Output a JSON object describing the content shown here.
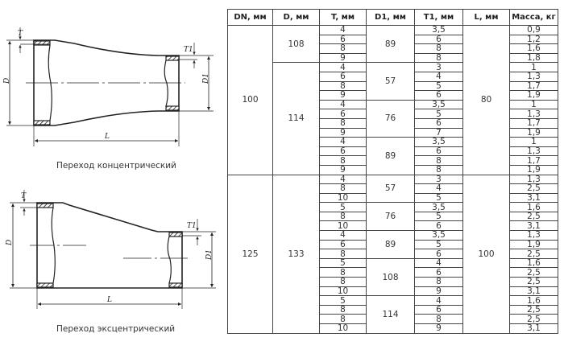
{
  "figures": {
    "concentric": {
      "caption": "Переход концентрический",
      "labels": {
        "T": "T",
        "T1": "T1",
        "D": "D",
        "D1": "D1",
        "L": "L"
      }
    },
    "eccentric": {
      "caption": "Переход эксцентрический",
      "labels": {
        "T": "T",
        "T1": "T1",
        "D": "D",
        "D1": "D1",
        "L": "L"
      }
    }
  },
  "table": {
    "headers": [
      "DN, мм",
      "D, мм",
      "T, мм",
      "D1, мм",
      "T1, мм",
      "L, мм",
      "Масса, кг"
    ],
    "groups": [
      {
        "dn": "100",
        "l": "80",
        "d_groups": [
          {
            "d": "108",
            "d1_groups": [
              {
                "d1": "89",
                "rows": [
                  [
                    "4",
                    "3,5",
                    "0,9"
                  ],
                  [
                    "6",
                    "6",
                    "1,2"
                  ],
                  [
                    "8",
                    "8",
                    "1,6"
                  ],
                  [
                    "9",
                    "8",
                    "1,8"
                  ]
                ]
              }
            ]
          },
          {
            "d": "114",
            "d1_groups": [
              {
                "d1": "57",
                "rows": [
                  [
                    "4",
                    "3",
                    "1"
                  ],
                  [
                    "6",
                    "4",
                    "1,3"
                  ],
                  [
                    "8",
                    "5",
                    "1,7"
                  ],
                  [
                    "9",
                    "6",
                    "1,9"
                  ]
                ]
              },
              {
                "d1": "76",
                "rows": [
                  [
                    "4",
                    "3,5",
                    "1"
                  ],
                  [
                    "6",
                    "5",
                    "1,3"
                  ],
                  [
                    "8",
                    "6",
                    "1,7"
                  ],
                  [
                    "9",
                    "7",
                    "1,9"
                  ]
                ]
              },
              {
                "d1": "89",
                "rows": [
                  [
                    "4",
                    "3,5",
                    "1"
                  ],
                  [
                    "6",
                    "6",
                    "1,3"
                  ],
                  [
                    "8",
                    "8",
                    "1,7"
                  ],
                  [
                    "9",
                    "8",
                    "1,9"
                  ]
                ]
              }
            ]
          }
        ]
      },
      {
        "dn": "125",
        "l": "100",
        "d_groups": [
          {
            "d": "133",
            "d1_groups": [
              {
                "d1": "57",
                "rows": [
                  [
                    "4",
                    "3",
                    "1,3"
                  ],
                  [
                    "8",
                    "4",
                    "2,5"
                  ],
                  [
                    "10",
                    "5",
                    "3,1"
                  ]
                ]
              },
              {
                "d1": "76",
                "rows": [
                  [
                    "5",
                    "3,5",
                    "1,6"
                  ],
                  [
                    "8",
                    "5",
                    "2,5"
                  ],
                  [
                    "10",
                    "6",
                    "3,1"
                  ]
                ]
              },
              {
                "d1": "89",
                "rows": [
                  [
                    "4",
                    "3,5",
                    "1,3"
                  ],
                  [
                    "6",
                    "5",
                    "1,9"
                  ],
                  [
                    "8",
                    "6",
                    "2,5"
                  ]
                ]
              },
              {
                "d1": "108",
                "rows": [
                  [
                    "5",
                    "4",
                    "1,6"
                  ],
                  [
                    "8",
                    "6",
                    "2,5"
                  ],
                  [
                    "8",
                    "8",
                    "2,5"
                  ],
                  [
                    "10",
                    "9",
                    "3,1"
                  ]
                ]
              },
              {
                "d1": "114",
                "rows": [
                  [
                    "5",
                    "4",
                    "1,6"
                  ],
                  [
                    "8",
                    "6",
                    "2,5"
                  ],
                  [
                    "8",
                    "8",
                    "2,5"
                  ],
                  [
                    "10",
                    "9",
                    "3,1"
                  ]
                ]
              }
            ]
          }
        ]
      }
    ]
  }
}
